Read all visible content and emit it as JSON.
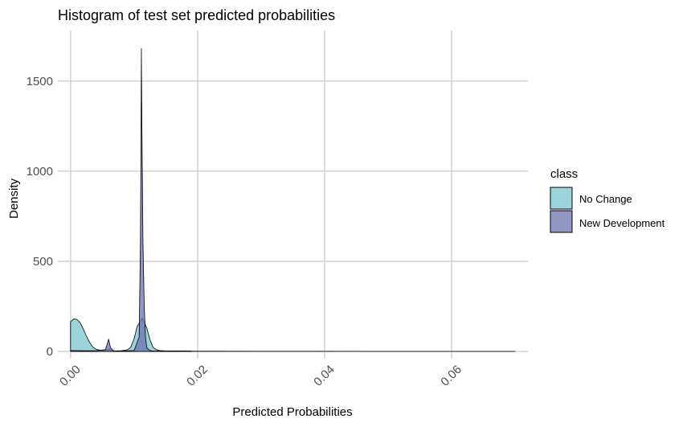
{
  "chart_data": {
    "type": "area",
    "title": "Histogram of test set predicted probabilities",
    "xlabel": "Predicted Probabilities",
    "ylabel": "Density",
    "xlim": [
      -0.002,
      0.072
    ],
    "ylim": [
      -40,
      1780
    ],
    "x_ticks": [
      0.0,
      0.02,
      0.04,
      0.06
    ],
    "x_tick_labels": [
      "0.00",
      "0.02",
      "0.04",
      "0.06"
    ],
    "y_ticks": [
      0,
      500,
      1000,
      1500
    ],
    "y_tick_labels": [
      "0",
      "500",
      "1000",
      "1500"
    ],
    "grid": true,
    "legend": {
      "title": "class",
      "position": "right"
    },
    "series": [
      {
        "name": "No Change",
        "color": "#7ac7cf",
        "points": [
          [
            0.0,
            165
          ],
          [
            0.0005,
            180
          ],
          [
            0.001,
            178
          ],
          [
            0.0015,
            160
          ],
          [
            0.002,
            125
          ],
          [
            0.0025,
            85
          ],
          [
            0.003,
            50
          ],
          [
            0.0035,
            25
          ],
          [
            0.004,
            12
          ],
          [
            0.005,
            5
          ],
          [
            0.0058,
            8
          ],
          [
            0.006,
            12
          ],
          [
            0.0065,
            6
          ],
          [
            0.007,
            3
          ],
          [
            0.008,
            4
          ],
          [
            0.009,
            10
          ],
          [
            0.0095,
            25
          ],
          [
            0.01,
            70
          ],
          [
            0.0105,
            140
          ],
          [
            0.0113,
            185
          ],
          [
            0.012,
            130
          ],
          [
            0.0125,
            65
          ],
          [
            0.013,
            22
          ],
          [
            0.0135,
            10
          ],
          [
            0.014,
            5
          ],
          [
            0.015,
            3
          ],
          [
            0.017,
            3
          ],
          [
            0.019,
            2
          ]
        ]
      },
      {
        "name": "New Development",
        "color": "#6b72b0",
        "points": [
          [
            0.0,
            5
          ],
          [
            0.002,
            4
          ],
          [
            0.004,
            4
          ],
          [
            0.0055,
            10
          ],
          [
            0.006,
            68
          ],
          [
            0.0063,
            20
          ],
          [
            0.0068,
            3
          ],
          [
            0.008,
            2
          ],
          [
            0.01,
            5
          ],
          [
            0.0108,
            80
          ],
          [
            0.011,
            600
          ],
          [
            0.0111,
            1200
          ],
          [
            0.01115,
            1680
          ],
          [
            0.0112,
            1400
          ],
          [
            0.0113,
            1000
          ],
          [
            0.0114,
            600
          ],
          [
            0.0116,
            250
          ],
          [
            0.0118,
            80
          ],
          [
            0.012,
            20
          ],
          [
            0.0125,
            5
          ],
          [
            0.013,
            2
          ],
          [
            0.015,
            2
          ],
          [
            0.019,
            1
          ],
          [
            0.03,
            0.5
          ],
          [
            0.05,
            0.3
          ],
          [
            0.07,
            0
          ]
        ]
      }
    ]
  }
}
